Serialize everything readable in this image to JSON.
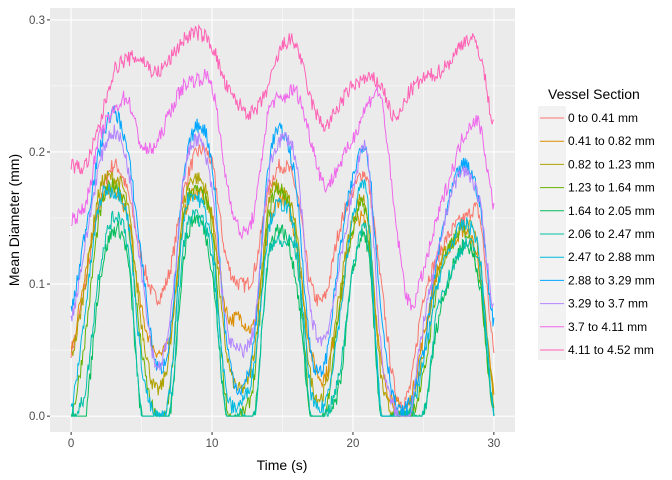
{
  "chart_data": {
    "type": "line",
    "xlabel": "Time (s)",
    "ylabel": "Mean Diameter (mm)",
    "xlim": [
      -1.5,
      31.5
    ],
    "ylim": [
      -0.012,
      0.309
    ],
    "xticks": [
      "0",
      "10",
      "20",
      "30"
    ],
    "xtick_values": [
      0,
      10,
      20,
      30
    ],
    "yticks": [
      "0.0",
      "0.1",
      "0.2",
      "0.3"
    ],
    "ytick_values": [
      0,
      0.1,
      0.2,
      0.3
    ],
    "grid": true,
    "legend": {
      "title": "Vessel Section",
      "placement": "right"
    },
    "x": [
      0,
      1,
      2,
      3,
      4,
      5,
      6,
      7,
      8,
      9,
      10,
      11,
      12,
      13,
      14,
      15,
      16,
      17,
      18,
      19,
      20,
      21,
      22,
      23,
      24,
      25,
      26,
      27,
      28,
      29,
      30
    ],
    "series": [
      {
        "name": "0 to 0.41 mm",
        "color": "#F8766D",
        "values": [
          0.05,
          0.1,
          0.16,
          0.19,
          0.17,
          0.12,
          0.09,
          0.11,
          0.17,
          0.2,
          0.19,
          0.12,
          0.1,
          0.11,
          0.17,
          0.19,
          0.17,
          0.1,
          0.09,
          0.14,
          0.17,
          0.18,
          0.1,
          0.02,
          0.02,
          0.09,
          0.12,
          0.14,
          0.15,
          0.15,
          0.05
        ]
      },
      {
        "name": "0.41 to 0.82 mm",
        "color": "#DB8E00",
        "values": [
          0.05,
          0.11,
          0.16,
          0.17,
          0.15,
          0.08,
          0.05,
          0.06,
          0.15,
          0.17,
          0.15,
          0.08,
          0.075,
          0.07,
          0.14,
          0.165,
          0.13,
          0.05,
          0.03,
          0.08,
          0.14,
          0.14,
          0.04,
          0.01,
          0.01,
          0.06,
          0.11,
          0.13,
          0.14,
          0.11,
          0.02
        ]
      },
      {
        "name": "0.82 to 1.23 mm",
        "color": "#AEA200",
        "values": [
          0.045,
          0.1,
          0.17,
          0.18,
          0.16,
          0.07,
          0.02,
          0.05,
          0.16,
          0.18,
          0.15,
          0.05,
          0.02,
          0.05,
          0.16,
          0.17,
          0.14,
          0.03,
          0.02,
          0.09,
          0.15,
          0.155,
          0.03,
          0.0,
          0.0,
          0.05,
          0.11,
          0.13,
          0.145,
          0.12,
          0.01
        ]
      },
      {
        "name": "1.23 to 1.64 mm",
        "color": "#64B200",
        "values": [
          0.0,
          0.06,
          0.15,
          0.175,
          0.15,
          0.05,
          0.0,
          0.02,
          0.15,
          0.17,
          0.14,
          0.01,
          0.0,
          0.03,
          0.15,
          0.17,
          0.13,
          0.0,
          0.0,
          0.08,
          0.14,
          0.15,
          0.0,
          0.0,
          0.0,
          0.03,
          0.1,
          0.13,
          0.14,
          0.1,
          0.0
        ]
      },
      {
        "name": "1.64 to 2.05 mm",
        "color": "#00BD5C",
        "values": [
          0.0,
          0.0,
          0.1,
          0.14,
          0.12,
          0.0,
          0.0,
          0.0,
          0.12,
          0.15,
          0.11,
          0.0,
          0.0,
          0.0,
          0.12,
          0.14,
          0.1,
          0.0,
          0.0,
          0.02,
          0.11,
          0.13,
          0.0,
          0.0,
          0.0,
          0.0,
          0.07,
          0.11,
          0.13,
          0.1,
          0.0
        ]
      },
      {
        "name": "2.06 to 2.47 mm",
        "color": "#00C1A7",
        "values": [
          0.0,
          0.02,
          0.11,
          0.15,
          0.13,
          0.0,
          0.0,
          0.0,
          0.13,
          0.15,
          0.12,
          0.0,
          0.0,
          0.0,
          0.12,
          0.13,
          0.12,
          0.0,
          0.0,
          0.03,
          0.11,
          0.14,
          0.0,
          0.0,
          0.0,
          0.0,
          0.08,
          0.11,
          0.13,
          0.11,
          0.0
        ]
      },
      {
        "name": "2.47 to 2.88 mm",
        "color": "#00BADE",
        "values": [
          0.005,
          0.08,
          0.16,
          0.17,
          0.15,
          0.04,
          0.0,
          0.02,
          0.15,
          0.165,
          0.13,
          0.02,
          0.01,
          0.04,
          0.14,
          0.16,
          0.13,
          0.02,
          0.01,
          0.07,
          0.15,
          0.165,
          0.0,
          0.0,
          0.0,
          0.04,
          0.1,
          0.13,
          0.145,
          0.12,
          0.0
        ]
      },
      {
        "name": "2.88 to 3.29 mm",
        "color": "#00A6FF",
        "values": [
          0.08,
          0.14,
          0.2,
          0.23,
          0.2,
          0.12,
          0.04,
          0.06,
          0.18,
          0.22,
          0.19,
          0.06,
          0.02,
          0.06,
          0.19,
          0.215,
          0.17,
          0.05,
          0.04,
          0.12,
          0.18,
          0.2,
          0.08,
          0.01,
          0.01,
          0.05,
          0.12,
          0.17,
          0.19,
          0.16,
          0.07
        ]
      },
      {
        "name": "3.29 to 3.7 mm",
        "color": "#B385FF",
        "values": [
          0.075,
          0.13,
          0.19,
          0.215,
          0.19,
          0.11,
          0.04,
          0.07,
          0.18,
          0.21,
          0.17,
          0.07,
          0.05,
          0.07,
          0.18,
          0.21,
          0.19,
          0.08,
          0.06,
          0.11,
          0.17,
          0.2,
          0.05,
          0.005,
          0.0,
          0.07,
          0.12,
          0.17,
          0.185,
          0.16,
          0.08
        ]
      },
      {
        "name": "3.7 to 4.11 mm",
        "color": "#EF67EB",
        "values": [
          0.15,
          0.16,
          0.21,
          0.23,
          0.24,
          0.205,
          0.205,
          0.23,
          0.25,
          0.255,
          0.25,
          0.18,
          0.14,
          0.155,
          0.23,
          0.24,
          0.245,
          0.21,
          0.175,
          0.19,
          0.21,
          0.235,
          0.24,
          0.15,
          0.085,
          0.11,
          0.15,
          0.185,
          0.215,
          0.22,
          0.16
        ]
      },
      {
        "name": "4.11 to 4.52 mm",
        "color": "#FF63B6",
        "values": [
          0.19,
          0.19,
          0.22,
          0.26,
          0.27,
          0.27,
          0.26,
          0.27,
          0.285,
          0.29,
          0.28,
          0.25,
          0.235,
          0.23,
          0.25,
          0.28,
          0.28,
          0.24,
          0.22,
          0.235,
          0.25,
          0.255,
          0.25,
          0.225,
          0.245,
          0.255,
          0.26,
          0.27,
          0.285,
          0.275,
          0.22
        ]
      }
    ]
  }
}
